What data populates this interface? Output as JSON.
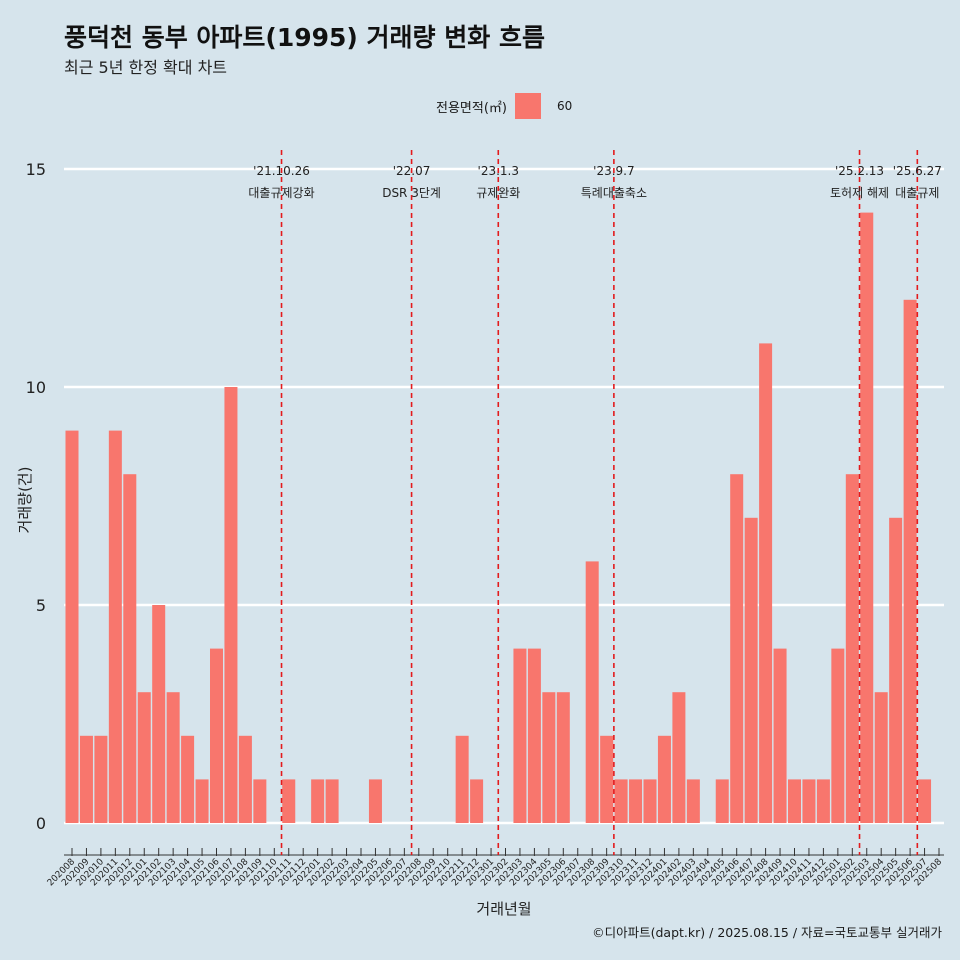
{
  "title": "풍덕천 동부 아파트(1995) 거래량 변화 흐름",
  "subtitle": "최근 5년 한정 확대 차트",
  "caption": "©디아파트(dapt.kr) / 2025.08.15 / 자료=국토교통부 실거래가",
  "colors": {
    "background": "#d6e4ec",
    "bar": "#f8766d",
    "gridline": "#ffffff",
    "event_line": "#e31a1c"
  },
  "chart_data": {
    "type": "bar",
    "xlabel": "거래년월",
    "ylabel": "거래량(건)",
    "legend": {
      "title": "전용면적(㎡)",
      "placement": "top-center"
    },
    "ylim": [
      -0.6,
      15.4
    ],
    "yticks": [
      0,
      5,
      10,
      15
    ],
    "categories": [
      "202008",
      "202009",
      "202010",
      "202011",
      "202012",
      "202101",
      "202102",
      "202103",
      "202104",
      "202105",
      "202106",
      "202107",
      "202108",
      "202109",
      "202110",
      "202111",
      "202112",
      "202201",
      "202202",
      "202203",
      "202204",
      "202205",
      "202206",
      "202207",
      "202208",
      "202209",
      "202210",
      "202211",
      "202212",
      "202301",
      "202302",
      "202303",
      "202304",
      "202305",
      "202306",
      "202307",
      "202308",
      "202309",
      "202310",
      "202311",
      "202312",
      "202401",
      "202402",
      "202403",
      "202404",
      "202405",
      "202406",
      "202407",
      "202408",
      "202409",
      "202410",
      "202411",
      "202412",
      "202501",
      "202502",
      "202503",
      "202504",
      "202505",
      "202506",
      "202507",
      "202508"
    ],
    "series": [
      {
        "name": "60",
        "values": [
          9,
          2,
          2,
          9,
          8,
          3,
          5,
          3,
          2,
          1,
          4,
          10,
          2,
          1,
          0,
          1,
          0,
          1,
          1,
          0,
          0,
          1,
          0,
          0,
          0,
          0,
          0,
          2,
          1,
          0,
          0,
          4,
          4,
          3,
          3,
          0,
          6,
          2,
          1,
          1,
          1,
          2,
          3,
          1,
          0,
          1,
          8,
          7,
          11,
          4,
          1,
          1,
          1,
          4,
          8,
          14,
          3,
          7,
          12,
          1,
          0
        ]
      }
    ],
    "events": [
      {
        "date_top": "'21.10.26",
        "label": "대출규제강화",
        "month": "202110"
      },
      {
        "date_top": "'22.07",
        "label": "DSR 3단계",
        "month": "202207"
      },
      {
        "date_top": "'23.1.3",
        "label": "규제완화",
        "month": "202301"
      },
      {
        "date_top": "'23.9.7",
        "label": "특례대출축소",
        "month": "202309"
      },
      {
        "date_top": "'25.2.13",
        "label": "토허제 해제",
        "month": "202502"
      },
      {
        "date_top": "'25.6.27",
        "label": "대출규제",
        "month": "202506"
      }
    ]
  }
}
